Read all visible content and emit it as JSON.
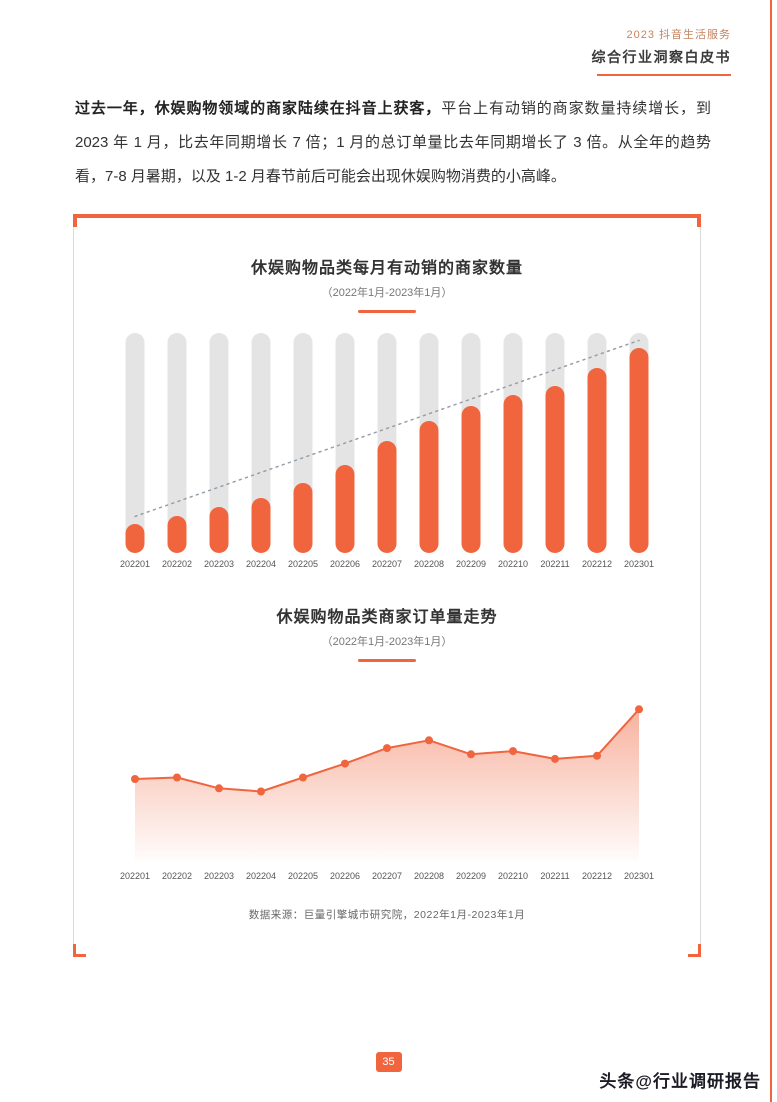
{
  "colors": {
    "primary": "#F0653E",
    "bar_track": "#E4E4E4"
  },
  "header": {
    "line1": "2023 抖音生活服务",
    "line2": "综合行业洞察白皮书"
  },
  "paragraph": {
    "bold": "过去一年，休娱购物领域的商家陆续在抖音上获客，",
    "normal": "平台上有动销的商家数量持续增长，到 2023 年 1 月，比去年同期增长 7 倍；1 月的总订单量比去年同期增长了 3 倍。从全年的趋势看，7-8 月暑期，以及 1-2 月春节前后可能会出现休娱购物消费的小高峰。"
  },
  "source": "数据来源：巨量引擎城市研究院，2022年1月-2023年1月",
  "page_number": "35",
  "watermark": "头条@行业调研报告",
  "chart_data": [
    {
      "type": "bar",
      "title": "休娱购物品类每月有动销的商家数量",
      "subtitle": "（2022年1月-2023年1月）",
      "categories": [
        "202201",
        "202202",
        "202203",
        "202204",
        "202205",
        "202206",
        "202207",
        "202208",
        "202209",
        "202210",
        "202211",
        "202212",
        "202301"
      ],
      "values": [
        13,
        17,
        21,
        25,
        32,
        40,
        51,
        60,
        67,
        72,
        76,
        84,
        93
      ],
      "ylim": [
        0,
        100
      ],
      "units": "relative index (no numeric axis shown in chart)",
      "legend": "none",
      "grid": false,
      "notes": "light gray full-height track behind each bar; dotted gray trend line rising from first bar top to last bar top"
    },
    {
      "type": "area",
      "title": "休娱购物品类商家订单量走势",
      "subtitle": "（2022年1月-2023年1月）",
      "categories": [
        "202201",
        "202202",
        "202203",
        "202204",
        "202205",
        "202206",
        "202207",
        "202208",
        "202209",
        "202210",
        "202211",
        "202212",
        "202301"
      ],
      "values": [
        49,
        50,
        43,
        41,
        50,
        59,
        69,
        74,
        65,
        67,
        62,
        64,
        94
      ],
      "ylim": [
        0,
        100
      ],
      "units": "relative index (no numeric axis shown in chart)",
      "legend": "none",
      "grid": false,
      "notes": "orange line with round point markers and vertical orange-to-white gradient area fill; sharp peak at 202301"
    }
  ]
}
